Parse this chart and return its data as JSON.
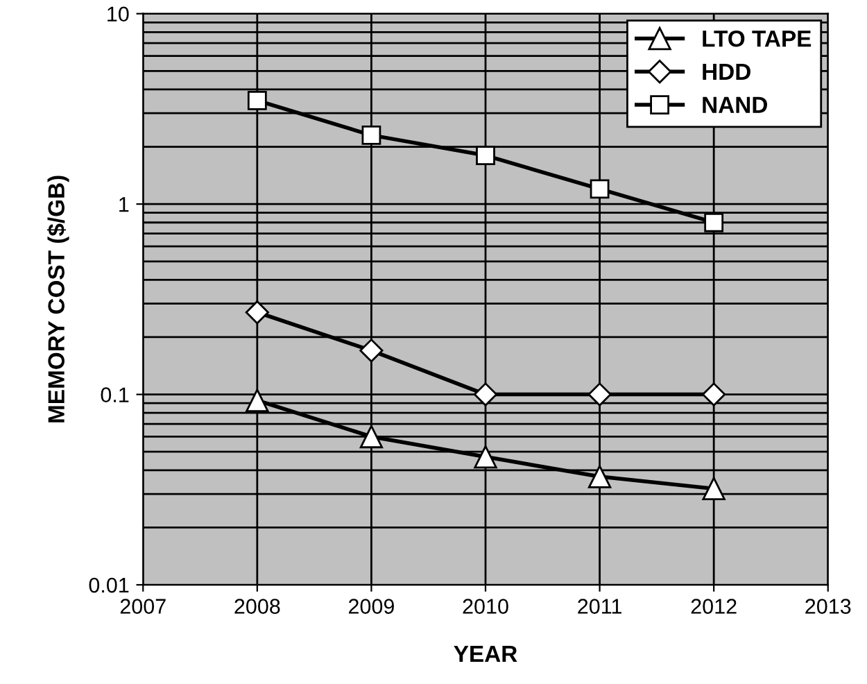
{
  "chart_data": {
    "type": "line",
    "xlabel": "YEAR",
    "ylabel": "MEMORY COST ($/GB)",
    "x": [
      2008,
      2009,
      2010,
      2011,
      2012
    ],
    "series": [
      {
        "name": "LTO TAPE",
        "color": "#000000",
        "marker": "triangle",
        "values": [
          0.093,
          0.06,
          0.047,
          0.037,
          0.032
        ]
      },
      {
        "name": "HDD",
        "color": "#000000",
        "marker": "diamond",
        "values": [
          0.27,
          0.17,
          0.1,
          0.1,
          0.1
        ]
      },
      {
        "name": "NAND",
        "color": "#000000",
        "marker": "square",
        "values": [
          3.5,
          2.3,
          1.8,
          1.2,
          0.8
        ]
      }
    ],
    "log": "y",
    "xlim": [
      2007,
      2013
    ],
    "xticks": [
      2007,
      2008,
      2009,
      2010,
      2011,
      2012,
      2013
    ],
    "ylim": [
      0.01,
      10
    ],
    "yticks": [
      0.01,
      0.1,
      1,
      10
    ],
    "grid": true,
    "legend": "top right",
    "line_style": "solid"
  }
}
